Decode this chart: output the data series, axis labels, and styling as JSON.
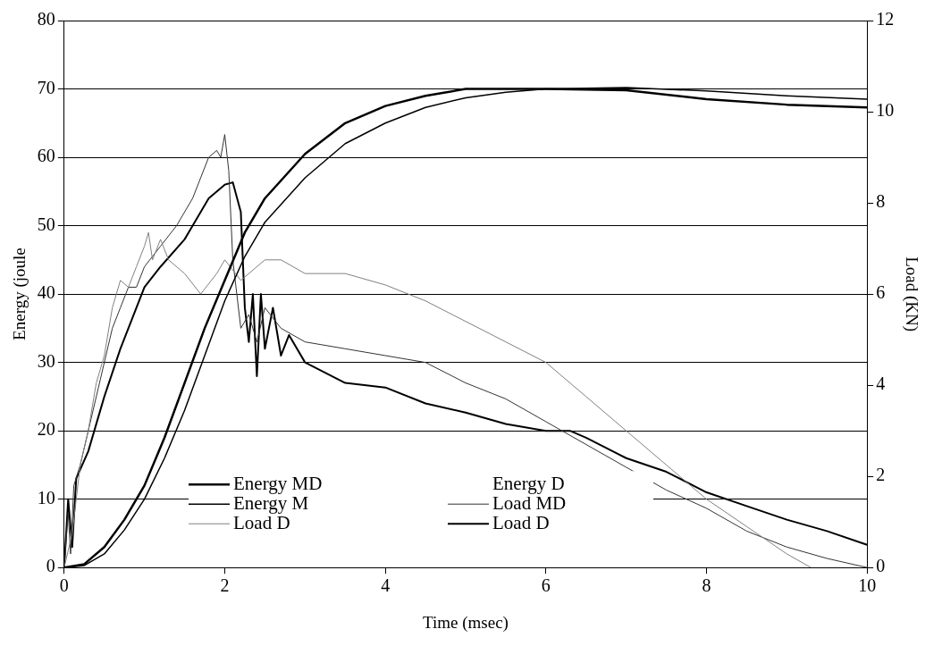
{
  "chart_data": {
    "type": "line",
    "xlabel": "Time (msec)",
    "ylabel": "Energy (joule",
    "y2label": "Load (KN)",
    "xlim": [
      0,
      10
    ],
    "xticks": [
      0,
      2,
      4,
      6,
      8,
      10
    ],
    "ylim": [
      0,
      80
    ],
    "yticks": [
      0,
      10,
      20,
      30,
      40,
      50,
      60,
      70,
      80
    ],
    "y2lim": [
      0,
      12
    ],
    "y2ticks": [
      0,
      2,
      4,
      6,
      8,
      10,
      12
    ],
    "grid": "y",
    "legend": "bottom",
    "line_style": "solid",
    "marker": "none",
    "series": [
      {
        "name": "Energy MD",
        "color": "#000000",
        "x": [
          0,
          0.25,
          0.5,
          0.75,
          1,
          1.25,
          1.5,
          1.75,
          2,
          2.25,
          2.5,
          3,
          3.5,
          4,
          4.5,
          5,
          6,
          7,
          8,
          9,
          10
        ],
        "values": [
          0,
          0.5,
          3,
          7,
          12,
          19,
          27,
          35,
          42,
          49,
          54,
          60.5,
          65,
          67.5,
          69,
          70,
          70,
          69.8,
          68.5,
          67.7,
          67.3
        ]
      },
      {
        "name": "Energy M",
        "color": "#000000",
        "x": [
          0,
          0.25,
          0.5,
          0.75,
          1,
          1.25,
          1.5,
          1.75,
          2,
          2.25,
          2.5,
          3,
          3.5,
          4,
          4.5,
          5,
          5.5,
          6,
          7,
          8,
          9,
          10
        ],
        "values": [
          0,
          0.3,
          2,
          5.5,
          10,
          16,
          23,
          31,
          39,
          45.5,
          50.5,
          57,
          62,
          65,
          67.3,
          68.7,
          69.5,
          70,
          70.2,
          69.7,
          69,
          68.5
        ]
      },
      {
        "name": "Load D",
        "color": "#808080",
        "axis": "y2",
        "x": [
          0,
          0.1,
          0.2,
          0.3,
          0.4,
          0.5,
          0.6,
          0.7,
          0.8,
          0.9,
          1,
          1.05,
          1.1,
          1.2,
          1.3,
          1.5,
          1.7,
          1.9,
          2,
          2.2,
          2.5,
          2.7,
          3,
          3.5,
          4,
          4.5,
          5,
          5.5,
          6,
          6.5,
          7,
          7.5,
          8,
          8.5,
          9,
          9.3
        ],
        "values": [
          0,
          0.75,
          2.25,
          3,
          4.05,
          4.65,
          5.7,
          6.3,
          6.15,
          6.6,
          7.05,
          7.35,
          6.75,
          7.2,
          6.75,
          6.45,
          6,
          6.45,
          6.75,
          6.3,
          6.75,
          6.75,
          6.45,
          6.45,
          6.2,
          5.85,
          5.4,
          4.95,
          4.5,
          3.75,
          3,
          2.25,
          1.5,
          0.9,
          0.3,
          0
        ]
      },
      {
        "name": "Energy D"
      },
      {
        "name": "Load MD",
        "color": "#333333",
        "axis": "y2",
        "x": [
          0,
          0.05,
          0.08,
          0.12,
          0.2,
          0.3,
          0.4,
          0.5,
          0.6,
          0.7,
          0.8,
          0.9,
          1,
          1.2,
          1.4,
          1.6,
          1.8,
          1.9,
          1.95,
          2,
          2.05,
          2.1,
          2.2,
          2.3,
          2.4,
          2.5,
          2.7,
          3,
          3.5,
          4,
          4.5,
          5,
          5.5,
          6,
          6.3,
          7,
          7.5,
          8,
          8.5,
          9,
          9.5,
          10
        ],
        "values": [
          0,
          1.2,
          0.3,
          1.8,
          2.25,
          3,
          3.75,
          4.5,
          5.25,
          5.7,
          6.15,
          6.15,
          6.6,
          7.05,
          7.5,
          8.1,
          9,
          9.15,
          9,
          9.5,
          8.7,
          6.75,
          5.25,
          5.55,
          4.95,
          5.7,
          5.25,
          4.95,
          4.8,
          4.65,
          4.5,
          4.05,
          3.7,
          3.2,
          2.9,
          2.2,
          1.7,
          1.3,
          0.8,
          0.45,
          0.2,
          0
        ]
      },
      {
        "name": "Load D",
        "color": "#000000",
        "axis": "y2",
        "x": [
          0,
          0.05,
          0.1,
          0.15,
          0.3,
          0.5,
          0.7,
          0.9,
          1,
          1.2,
          1.5,
          1.8,
          2,
          2.1,
          2.2,
          2.25,
          2.3,
          2.35,
          2.4,
          2.45,
          2.5,
          2.6,
          2.7,
          2.8,
          3,
          3.5,
          4,
          4.5,
          5,
          5.5,
          6,
          6.3,
          6.5,
          7,
          7.5,
          8,
          8.5,
          9,
          9.5,
          10
        ],
        "values": [
          0,
          1.5,
          0.45,
          1.95,
          2.55,
          3.75,
          4.8,
          5.7,
          6.15,
          6.6,
          7.2,
          8.1,
          8.4,
          8.45,
          7.8,
          5.7,
          4.95,
          6,
          4.2,
          6,
          4.8,
          5.7,
          4.65,
          5.1,
          4.5,
          4.05,
          3.95,
          3.6,
          3.4,
          3.15,
          3,
          3,
          2.85,
          2.4,
          2.1,
          1.65,
          1.35,
          1.05,
          0.8,
          0.5
        ]
      }
    ]
  }
}
